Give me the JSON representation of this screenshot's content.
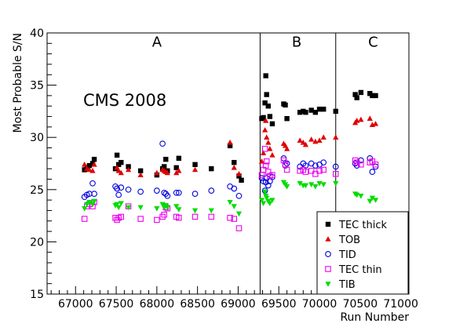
{
  "chart_data": {
    "type": "scatter",
    "title": "",
    "annotation": "CMS 2008",
    "xlabel": "Run Number",
    "ylabel": "Most Probable S/N",
    "xlim": [
      66650,
      71100
    ],
    "ylim": [
      15,
      40
    ],
    "x_ticks": [
      67000,
      67500,
      68000,
      68500,
      69000,
      69500,
      70000,
      70500,
      71000
    ],
    "x_tick_labels": [
      "67000",
      "67500",
      "68000",
      "68500",
      "69000",
      "69500",
      "70000",
      "70500",
      "71000"
    ],
    "y_ticks": [
      15,
      20,
      25,
      30,
      35,
      40
    ],
    "y_tick_labels": [
      "15",
      "20",
      "25",
      "30",
      "35",
      "40"
    ],
    "grid": false,
    "legend_position": "bottom-right",
    "period_boundaries": [
      69270,
      70200
    ],
    "period_labels": [
      {
        "label": "A",
        "x": 68000,
        "y": 38.7
      },
      {
        "label": "B",
        "x": 69720,
        "y": 38.7
      },
      {
        "label": "C",
        "x": 70660,
        "y": 38.7
      }
    ],
    "series": [
      {
        "name": "TEC thick",
        "marker": "square",
        "color": "#000000",
        "points": [
          [
            67110,
            26.9
          ],
          [
            67140,
            27.1
          ],
          [
            67170,
            27.3
          ],
          [
            67210,
            27.5
          ],
          [
            67230,
            27.9
          ],
          [
            67490,
            27.0
          ],
          [
            67510,
            28.3
          ],
          [
            67530,
            27.4
          ],
          [
            67560,
            27.6
          ],
          [
            67650,
            27.2
          ],
          [
            67800,
            26.8
          ],
          [
            68000,
            26.4
          ],
          [
            68070,
            27.0
          ],
          [
            68090,
            27.2
          ],
          [
            68110,
            27.9
          ],
          [
            68130,
            26.8
          ],
          [
            68240,
            27.1
          ],
          [
            68270,
            28.0
          ],
          [
            68470,
            27.4
          ],
          [
            68670,
            27.0
          ],
          [
            68900,
            29.2
          ],
          [
            68950,
            27.6
          ],
          [
            69010,
            26.3
          ],
          [
            69040,
            25.9
          ],
          [
            69290,
            31.8
          ],
          [
            69310,
            31.9
          ],
          [
            69330,
            33.3
          ],
          [
            69340,
            35.9
          ],
          [
            69350,
            34.1
          ],
          [
            69370,
            33.0
          ],
          [
            69390,
            32.0
          ],
          [
            69420,
            31.3
          ],
          [
            69560,
            33.2
          ],
          [
            69580,
            33.1
          ],
          [
            69600,
            31.8
          ],
          [
            69760,
            32.4
          ],
          [
            69800,
            32.5
          ],
          [
            69830,
            32.4
          ],
          [
            69900,
            32.6
          ],
          [
            69950,
            32.4
          ],
          [
            70000,
            32.7
          ],
          [
            70050,
            32.7
          ],
          [
            70200,
            32.5
          ],
          [
            70440,
            34.1
          ],
          [
            70460,
            33.8
          ],
          [
            70510,
            34.3
          ],
          [
            70620,
            34.2
          ],
          [
            70650,
            34.0
          ],
          [
            70690,
            34.0
          ]
        ]
      },
      {
        "name": "TOB",
        "marker": "triangle-up",
        "color": "#e00000",
        "points": [
          [
            67110,
            27.4
          ],
          [
            67140,
            27.0
          ],
          [
            67170,
            26.9
          ],
          [
            67210,
            26.8
          ],
          [
            67230,
            27.4
          ],
          [
            67510,
            27.1
          ],
          [
            67530,
            26.8
          ],
          [
            67560,
            26.6
          ],
          [
            67650,
            26.9
          ],
          [
            67800,
            26.4
          ],
          [
            68000,
            26.6
          ],
          [
            68070,
            26.9
          ],
          [
            68090,
            26.8
          ],
          [
            68110,
            26.7
          ],
          [
            68130,
            26.6
          ],
          [
            68240,
            26.6
          ],
          [
            68270,
            26.8
          ],
          [
            68470,
            26.9
          ],
          [
            68900,
            29.5
          ],
          [
            68950,
            27.1
          ],
          [
            69010,
            26.5
          ],
          [
            69290,
            27.7
          ],
          [
            69310,
            28.5
          ],
          [
            69330,
            30.7
          ],
          [
            69340,
            31.6
          ],
          [
            69350,
            30.0
          ],
          [
            69370,
            29.5
          ],
          [
            69390,
            28.9
          ],
          [
            69420,
            28.3
          ],
          [
            69560,
            29.4
          ],
          [
            69580,
            29.2
          ],
          [
            69600,
            28.9
          ],
          [
            69760,
            29.7
          ],
          [
            69800,
            29.5
          ],
          [
            69830,
            29.3
          ],
          [
            69900,
            29.8
          ],
          [
            69950,
            29.6
          ],
          [
            70000,
            29.7
          ],
          [
            70050,
            30.0
          ],
          [
            70200,
            30.0
          ],
          [
            70440,
            31.4
          ],
          [
            70460,
            31.6
          ],
          [
            70510,
            31.7
          ],
          [
            70620,
            31.8
          ],
          [
            70650,
            31.2
          ],
          [
            70690,
            31.3
          ]
        ]
      },
      {
        "name": "TID",
        "marker": "circle-open",
        "color": "#0000e0",
        "points": [
          [
            67110,
            24.3
          ],
          [
            67140,
            24.5
          ],
          [
            67170,
            24.6
          ],
          [
            67210,
            25.6
          ],
          [
            67230,
            24.6
          ],
          [
            67490,
            25.3
          ],
          [
            67510,
            25.1
          ],
          [
            67530,
            24.5
          ],
          [
            67560,
            25.2
          ],
          [
            67650,
            25.0
          ],
          [
            67800,
            24.8
          ],
          [
            68000,
            24.9
          ],
          [
            68070,
            29.4
          ],
          [
            68090,
            24.7
          ],
          [
            68110,
            24.6
          ],
          [
            68130,
            24.4
          ],
          [
            68240,
            24.7
          ],
          [
            68270,
            24.7
          ],
          [
            68470,
            24.6
          ],
          [
            68670,
            24.9
          ],
          [
            68900,
            25.3
          ],
          [
            68950,
            25.1
          ],
          [
            69010,
            24.4
          ],
          [
            69290,
            26.1
          ],
          [
            69310,
            25.8
          ],
          [
            69330,
            24.9
          ],
          [
            69340,
            25.7
          ],
          [
            69350,
            26.1
          ],
          [
            69370,
            25.4
          ],
          [
            69390,
            25.8
          ],
          [
            69420,
            26.2
          ],
          [
            69560,
            28.0
          ],
          [
            69580,
            27.3
          ],
          [
            69600,
            27.5
          ],
          [
            69760,
            27.2
          ],
          [
            69800,
            27.5
          ],
          [
            69830,
            27.3
          ],
          [
            69900,
            27.5
          ],
          [
            69950,
            27.3
          ],
          [
            70000,
            27.4
          ],
          [
            70050,
            27.6
          ],
          [
            70200,
            27.2
          ],
          [
            70440,
            27.5
          ],
          [
            70460,
            27.3
          ],
          [
            70510,
            27.8
          ],
          [
            70620,
            28.0
          ],
          [
            70650,
            26.7
          ],
          [
            70690,
            27.2
          ]
        ]
      },
      {
        "name": "TEC thin",
        "marker": "square-open",
        "color": "#ee00ee",
        "points": [
          [
            67110,
            22.2
          ],
          [
            67140,
            23.4
          ],
          [
            67170,
            23.6
          ],
          [
            67210,
            23.4
          ],
          [
            67230,
            23.8
          ],
          [
            67490,
            22.3
          ],
          [
            67510,
            22.1
          ],
          [
            67530,
            22.3
          ],
          [
            67560,
            22.4
          ],
          [
            67650,
            23.4
          ],
          [
            67800,
            22.2
          ],
          [
            68000,
            22.1
          ],
          [
            68070,
            22.4
          ],
          [
            68090,
            22.6
          ],
          [
            68110,
            23.3
          ],
          [
            68130,
            23.2
          ],
          [
            68240,
            22.4
          ],
          [
            68270,
            22.3
          ],
          [
            68470,
            22.4
          ],
          [
            68670,
            22.4
          ],
          [
            68900,
            22.3
          ],
          [
            68950,
            22.2
          ],
          [
            69010,
            21.3
          ],
          [
            69290,
            26.4
          ],
          [
            69310,
            26.9
          ],
          [
            69330,
            28.9
          ],
          [
            69340,
            27.3
          ],
          [
            69350,
            27.7
          ],
          [
            69370,
            26.7
          ],
          [
            69390,
            26.3
          ],
          [
            69420,
            26.4
          ],
          [
            69560,
            27.8
          ],
          [
            69580,
            27.4
          ],
          [
            69600,
            26.9
          ],
          [
            69760,
            26.8
          ],
          [
            69800,
            26.9
          ],
          [
            69830,
            26.7
          ],
          [
            69900,
            26.8
          ],
          [
            69950,
            26.5
          ],
          [
            70000,
            26.8
          ],
          [
            70050,
            26.9
          ],
          [
            70200,
            26.5
          ],
          [
            70440,
            27.8
          ],
          [
            70460,
            27.6
          ],
          [
            70510,
            27.4
          ],
          [
            70620,
            27.6
          ],
          [
            70650,
            27.7
          ],
          [
            70690,
            27.4
          ]
        ]
      },
      {
        "name": "TIB",
        "marker": "triangle-down",
        "color": "#00dd00",
        "points": [
          [
            67110,
            23.2
          ],
          [
            67140,
            23.6
          ],
          [
            67170,
            23.8
          ],
          [
            67210,
            23.6
          ],
          [
            67230,
            23.9
          ],
          [
            67490,
            23.5
          ],
          [
            67510,
            23.6
          ],
          [
            67530,
            23.3
          ],
          [
            67560,
            23.7
          ],
          [
            67650,
            23.3
          ],
          [
            67800,
            23.3
          ],
          [
            68000,
            23.2
          ],
          [
            68070,
            23.6
          ],
          [
            68090,
            23.3
          ],
          [
            68110,
            23.5
          ],
          [
            68130,
            23.3
          ],
          [
            68240,
            23.4
          ],
          [
            68270,
            23.1
          ],
          [
            68470,
            23.0
          ],
          [
            68670,
            23.0
          ],
          [
            68900,
            23.8
          ],
          [
            68950,
            23.4
          ],
          [
            69010,
            22.7
          ],
          [
            69290,
            24.0
          ],
          [
            69310,
            23.7
          ],
          [
            69330,
            24.8
          ],
          [
            69340,
            24.4
          ],
          [
            69350,
            24.2
          ],
          [
            69370,
            23.9
          ],
          [
            69390,
            23.7
          ],
          [
            69420,
            24.0
          ],
          [
            69560,
            25.7
          ],
          [
            69580,
            25.5
          ],
          [
            69600,
            25.3
          ],
          [
            69760,
            25.6
          ],
          [
            69800,
            25.4
          ],
          [
            69830,
            25.4
          ],
          [
            69900,
            25.5
          ],
          [
            69950,
            25.3
          ],
          [
            70000,
            25.6
          ],
          [
            70050,
            25.5
          ],
          [
            70200,
            25.6
          ],
          [
            70440,
            24.6
          ],
          [
            70460,
            24.5
          ],
          [
            70510,
            24.4
          ],
          [
            70620,
            23.9
          ],
          [
            70650,
            24.2
          ],
          [
            70690,
            24.0
          ]
        ]
      }
    ]
  }
}
